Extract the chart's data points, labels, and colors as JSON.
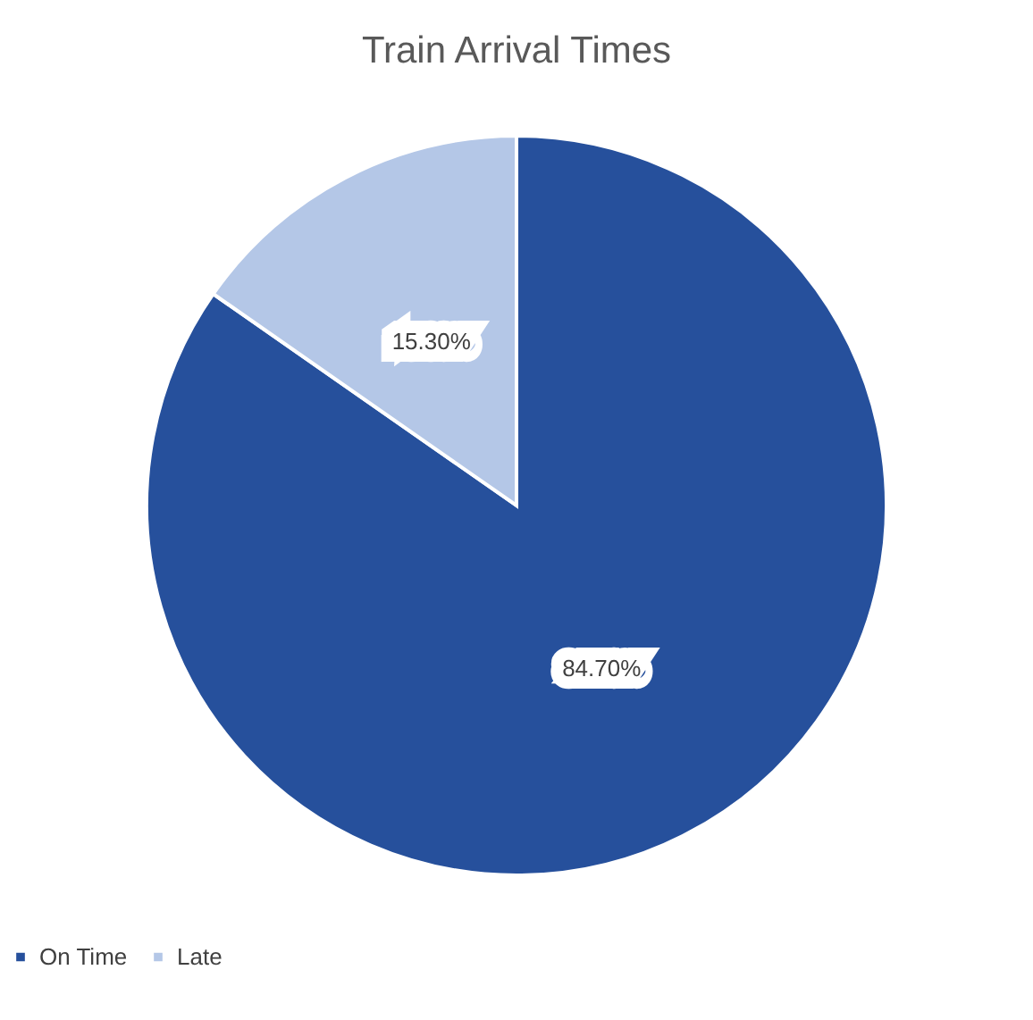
{
  "chart_data": {
    "type": "pie",
    "title": "Train Arrival Times",
    "categories": [
      "On Time",
      "Late"
    ],
    "values": [
      84.7,
      15.3
    ],
    "value_labels": [
      "84.70%",
      "15.30%"
    ],
    "colors": [
      "#26509c",
      "#b4c7e7"
    ],
    "legend": "bottom"
  }
}
